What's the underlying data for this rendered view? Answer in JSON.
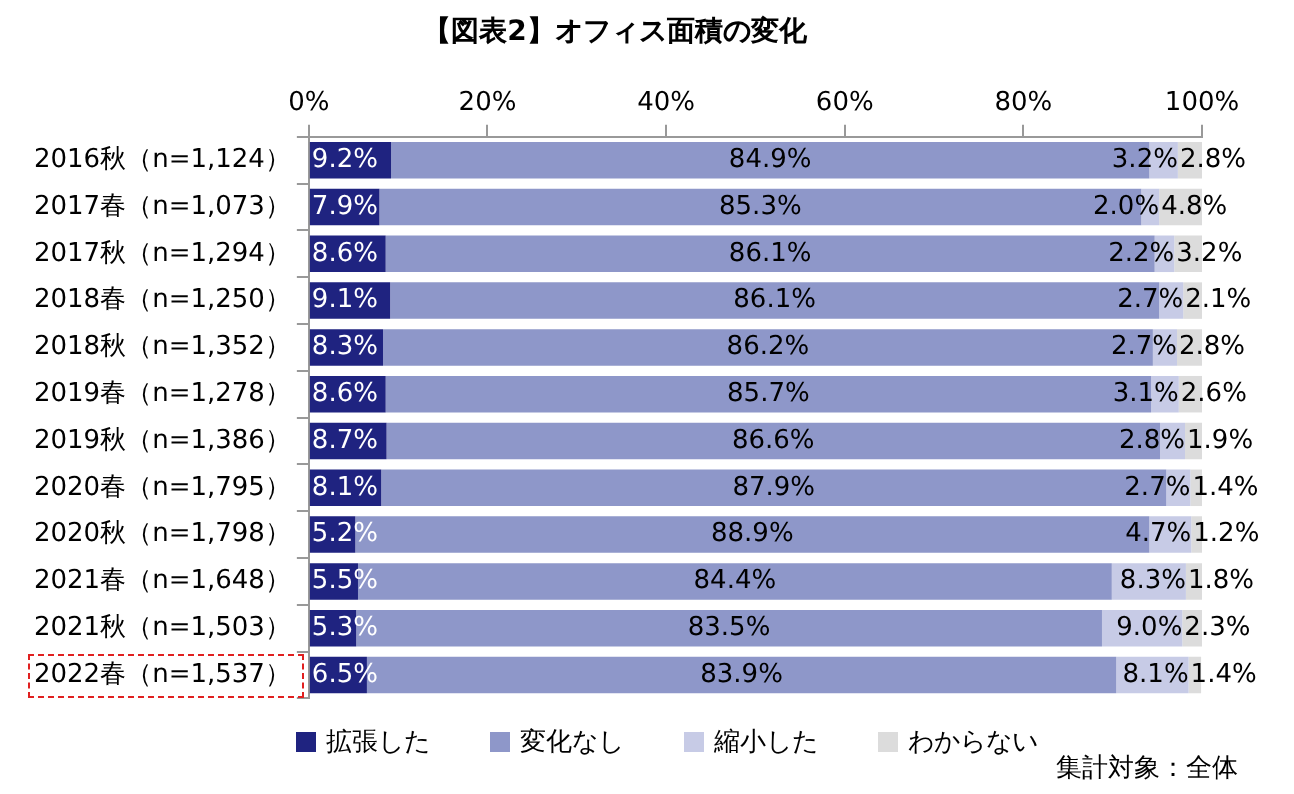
{
  "chart_data": {
    "type": "bar",
    "orientation": "horizontal",
    "stacked": true,
    "title": "【図表2】オフィス面積の変化",
    "categories": [
      "2016秋（n=1,124）",
      "2017春（n=1,073）",
      "2017秋（n=1,294）",
      "2018春（n=1,250）",
      "2018秋（n=1,352）",
      "2019春（n=1,278）",
      "2019秋（n=1,386）",
      "2020春（n=1,795）",
      "2020秋（n=1,798）",
      "2021春（n=1,648）",
      "2021秋（n=1,503）",
      "2022春（n=1,537）"
    ],
    "series": [
      {
        "name": "拡張した",
        "color": "#1f2380",
        "values": [
          9.2,
          7.9,
          8.6,
          9.1,
          8.3,
          8.6,
          8.7,
          8.1,
          5.2,
          5.5,
          5.3,
          6.5
        ],
        "value_labels": [
          "9.2%",
          "7.9%",
          "8.6%",
          "9.1%",
          "8.3%",
          "8.6%",
          "8.7%",
          "8.1%",
          "5.2%",
          "5.5%",
          "5.3%",
          "6.5%"
        ]
      },
      {
        "name": "変化なし",
        "color": "#8e97c9",
        "values": [
          84.9,
          85.3,
          86.1,
          86.1,
          86.2,
          85.7,
          86.6,
          87.9,
          88.9,
          84.4,
          83.5,
          83.9
        ],
        "value_labels": [
          "84.9%",
          "85.3%",
          "86.1%",
          "86.1%",
          "86.2%",
          "85.7%",
          "86.6%",
          "87.9%",
          "88.9%",
          "84.4%",
          "83.5%",
          "83.9%"
        ]
      },
      {
        "name": "縮小した",
        "color": "#c7cbe6",
        "values": [
          3.2,
          2.0,
          2.2,
          2.7,
          2.7,
          3.1,
          2.8,
          2.7,
          4.7,
          8.3,
          9.0,
          8.1
        ],
        "value_labels": [
          "3.2%",
          "2.0%",
          "2.2%",
          "2.7%",
          "2.7%",
          "3.1%",
          "2.8%",
          "2.7%",
          "4.7%",
          "8.3%",
          "9.0%",
          "8.1%"
        ]
      },
      {
        "name": "わからない",
        "color": "#dcdcdc",
        "values": [
          2.8,
          4.8,
          3.2,
          2.1,
          2.8,
          2.6,
          1.9,
          1.4,
          1.2,
          1.8,
          2.3,
          1.4
        ],
        "value_labels": [
          "2.8%",
          "4.8%",
          "3.2%",
          "2.1%",
          "2.8%",
          "2.6%",
          "1.9%",
          "1.4%",
          "1.2%",
          "1.8%",
          "2.3%",
          "1.4%"
        ]
      }
    ],
    "xlim": [
      0,
      100
    ],
    "xticks": [
      {
        "value": 0,
        "label": "0%"
      },
      {
        "value": 20,
        "label": "20%"
      },
      {
        "value": 40,
        "label": "40%"
      },
      {
        "value": 60,
        "label": "60%"
      },
      {
        "value": 80,
        "label": "80%"
      },
      {
        "value": 100,
        "label": "100%"
      }
    ],
    "grid": false,
    "legend": "bottom",
    "annotations": [
      "集計対象：全体"
    ]
  }
}
